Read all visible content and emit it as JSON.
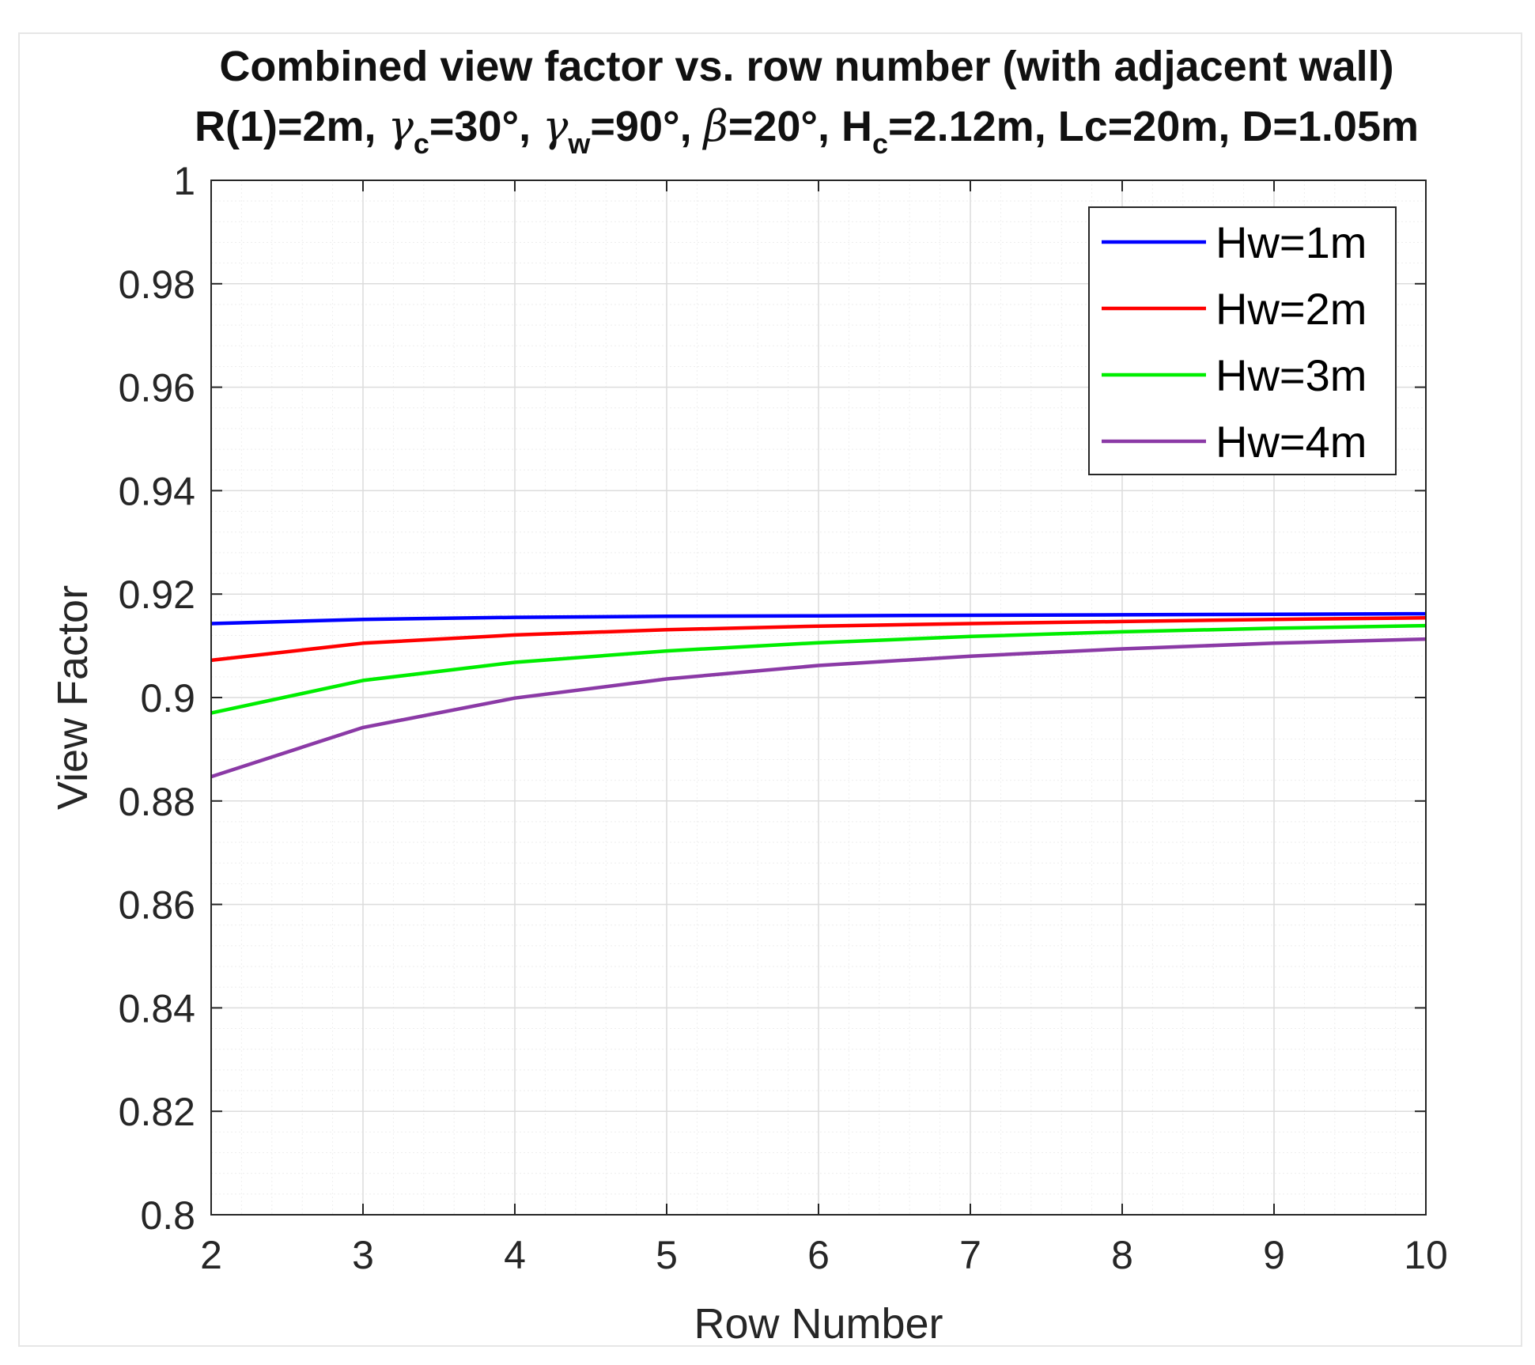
{
  "chart_data": {
    "type": "line",
    "title_line1": "Combined view factor vs. row number (with adjacent wall)",
    "subtitle_parts": {
      "r1": "R(1)=2m, ",
      "gamma": "γ",
      "gamma_c_sub": "c",
      "gamma_c_val": "=30°, ",
      "gamma_w_sub": "w",
      "gamma_w_val": "=90°, ",
      "beta": "β",
      "beta_val": "=20°, H",
      "hc_sub": "c",
      "rest": "=2.12m, Lc=20m, D=1.05m"
    },
    "xlabel": "Row Number",
    "ylabel": "View Factor",
    "xlim": [
      2,
      10
    ],
    "ylim": [
      0.8,
      1.0
    ],
    "xticks": [
      2,
      3,
      4,
      5,
      6,
      7,
      8,
      9,
      10
    ],
    "xtick_labels": [
      "2",
      "3",
      "4",
      "5",
      "6",
      "7",
      "8",
      "9",
      "10"
    ],
    "yticks": [
      0.8,
      0.82,
      0.84,
      0.86,
      0.88,
      0.9,
      0.92,
      0.94,
      0.96,
      0.98,
      1.0
    ],
    "ytick_labels": [
      "0.8",
      "0.82",
      "0.84",
      "0.86",
      "0.88",
      "0.9",
      "0.92",
      "0.94",
      "0.96",
      "0.98",
      "1"
    ],
    "grid": true,
    "minor_grid": true,
    "legend_position": "top-right",
    "x": [
      2,
      3,
      4,
      5,
      6,
      7,
      8,
      9,
      10
    ],
    "series": [
      {
        "name": "Hw=1m",
        "color": "#0000ff",
        "values": [
          0.9143,
          0.9151,
          0.9155,
          0.9157,
          0.9158,
          0.9159,
          0.916,
          0.9161,
          0.9162
        ]
      },
      {
        "name": "Hw=2m",
        "color": "#ff0000",
        "values": [
          0.9072,
          0.9105,
          0.9121,
          0.9131,
          0.9138,
          0.9143,
          0.9147,
          0.9151,
          0.9154
        ]
      },
      {
        "name": "Hw=3m",
        "color": "#00ee00",
        "values": [
          0.897,
          0.9033,
          0.9068,
          0.909,
          0.9106,
          0.9118,
          0.9127,
          0.9134,
          0.9139
        ]
      },
      {
        "name": "Hw=4m",
        "color": "#8b3aa6",
        "values": [
          0.8847,
          0.8942,
          0.8999,
          0.9036,
          0.9062,
          0.908,
          0.9094,
          0.9105,
          0.9113
        ]
      }
    ]
  }
}
